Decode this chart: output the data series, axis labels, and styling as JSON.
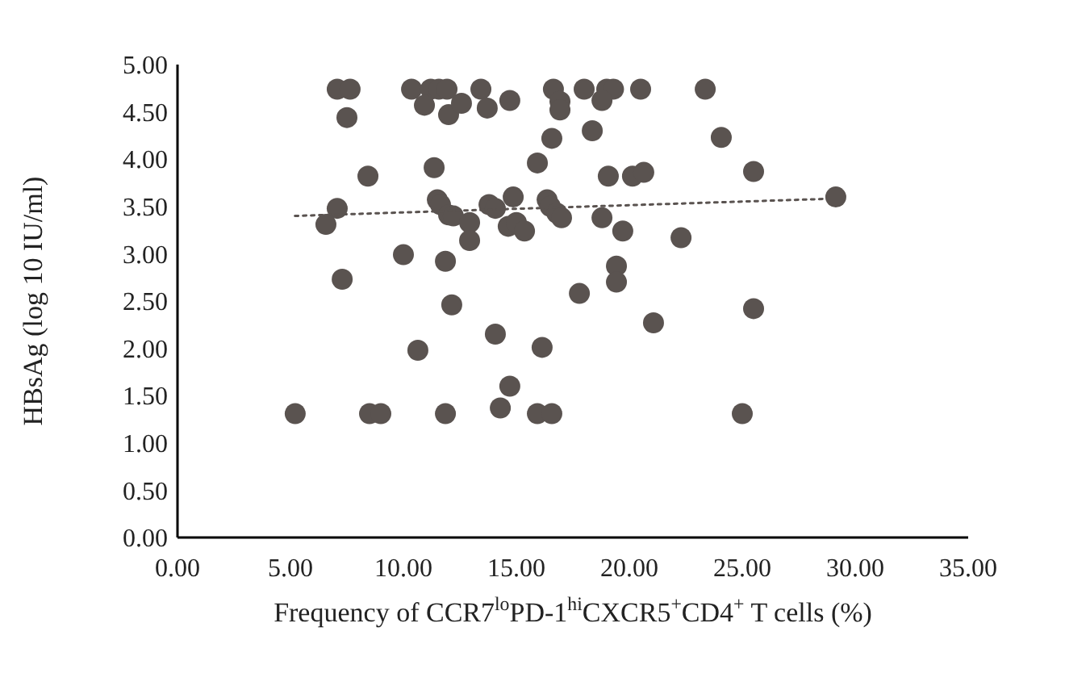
{
  "chart_data": {
    "type": "scatter",
    "xlabel": "Frequency of CCR7$^{lo}$PD-1$^{hi}$CXCR5$^{+}$CD4$^{+}$ T cells (%)",
    "ylabel": "HBsAg (log 10 IU/ml)",
    "xlim": [
      0,
      35
    ],
    "ylim": [
      0,
      5
    ],
    "xticks": [
      {
        "value": 0,
        "label": "0.00"
      },
      {
        "value": 5,
        "label": "5.00"
      },
      {
        "value": 10,
        "label": "10.00"
      },
      {
        "value": 15,
        "label": "15.00"
      },
      {
        "value": 20,
        "label": "20.00"
      },
      {
        "value": 25,
        "label": "25.00"
      },
      {
        "value": 30,
        "label": "30.00"
      },
      {
        "value": 35,
        "label": "35.00"
      }
    ],
    "yticks": [
      {
        "value": 0,
        "label": "0.00"
      },
      {
        "value": 0.5,
        "label": "0.50"
      },
      {
        "value": 1,
        "label": "1.00"
      },
      {
        "value": 1.5,
        "label": "1.50"
      },
      {
        "value": 2,
        "label": "2.00"
      },
      {
        "value": 2.5,
        "label": "2.50"
      },
      {
        "value": 3,
        "label": "3.00"
      },
      {
        "value": 3.5,
        "label": "3.50"
      },
      {
        "value": 4,
        "label": "4.00"
      },
      {
        "value": 4.5,
        "label": "4.50"
      },
      {
        "value": 5,
        "label": "5.00"
      }
    ],
    "grid": false,
    "series": [
      {
        "color": "#5a5350",
        "marker": "circle",
        "x": [
          7.07,
          7.64,
          10.36,
          11.21,
          11.57,
          11.93,
          13.43,
          16.64,
          18.0,
          19.0,
          19.3,
          20.5,
          23.36,
          10.93,
          7.5,
          12.0,
          12.57,
          13.71,
          14.71,
          16.93,
          16.93,
          18.79,
          18.36,
          16.57,
          24.07,
          8.43,
          11.36,
          15.93,
          19.07,
          20.14,
          20.64,
          25.5,
          11.5,
          11.64,
          7.07,
          6.57,
          12.0,
          14.86,
          29.14,
          13.79,
          14.07,
          16.36,
          16.5,
          16.79,
          17.0,
          12.21,
          12.93,
          12.93,
          14.64,
          15.0,
          15.36,
          18.79,
          19.71,
          22.29,
          10.0,
          11.86,
          19.43,
          19.43,
          7.29,
          17.79,
          12.14,
          25.5,
          21.07,
          14.07,
          16.14,
          10.64,
          14.71,
          14.29,
          5.21,
          8.5,
          9.0,
          11.86,
          15.93,
          16.57,
          25.0
        ],
        "values": [
          4.74,
          4.74,
          4.74,
          4.74,
          4.74,
          4.74,
          4.74,
          4.74,
          4.74,
          4.74,
          4.74,
          4.74,
          4.74,
          4.57,
          4.44,
          4.47,
          4.59,
          4.54,
          4.62,
          4.61,
          4.52,
          4.62,
          4.3,
          4.22,
          4.23,
          3.82,
          3.91,
          3.96,
          3.82,
          3.82,
          3.86,
          3.87,
          3.57,
          3.52,
          3.48,
          3.31,
          3.41,
          3.6,
          3.6,
          3.52,
          3.48,
          3.57,
          3.5,
          3.43,
          3.38,
          3.4,
          3.33,
          3.14,
          3.29,
          3.33,
          3.24,
          3.38,
          3.24,
          3.17,
          2.99,
          2.92,
          2.87,
          2.7,
          2.73,
          2.58,
          2.46,
          2.42,
          2.27,
          2.15,
          2.01,
          1.98,
          1.6,
          1.37,
          1.31,
          1.31,
          1.31,
          1.31,
          1.31,
          1.31,
          1.31
        ]
      },
      {
        "type": "line",
        "color": "#5a5350",
        "line_style": "dotted",
        "marker": "none",
        "x": [
          5.2,
          28.7
        ],
        "values": [
          3.4,
          3.58
        ]
      }
    ]
  }
}
